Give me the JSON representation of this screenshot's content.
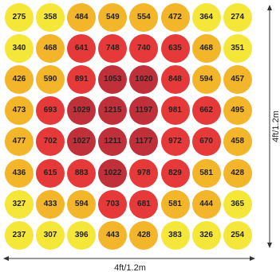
{
  "grid": {
    "rows": [
      [
        275,
        358,
        484,
        549,
        554,
        472,
        364,
        274
      ],
      [
        340,
        468,
        641,
        748,
        740,
        635,
        468,
        351
      ],
      [
        426,
        590,
        891,
        1053,
        1020,
        848,
        594,
        457
      ],
      [
        473,
        693,
        1029,
        1215,
        1197,
        981,
        662,
        495
      ],
      [
        477,
        702,
        1027,
        1211,
        1177,
        972,
        670,
        458
      ],
      [
        436,
        615,
        883,
        1022,
        978,
        829,
        581,
        428
      ],
      [
        327,
        433,
        594,
        703,
        681,
        581,
        444,
        365
      ],
      [
        237,
        307,
        396,
        443,
        428,
        383,
        326,
        254
      ]
    ]
  },
  "dimensions": {
    "width_label": "4ft/1.2m",
    "height_label": "4ft/1.2m"
  },
  "colors": {
    "yellow": "#f5e63a",
    "gold": "#f3b52a",
    "red": "#e63a3a",
    "dark_red": "#c0303a",
    "arrow": "#333333"
  }
}
